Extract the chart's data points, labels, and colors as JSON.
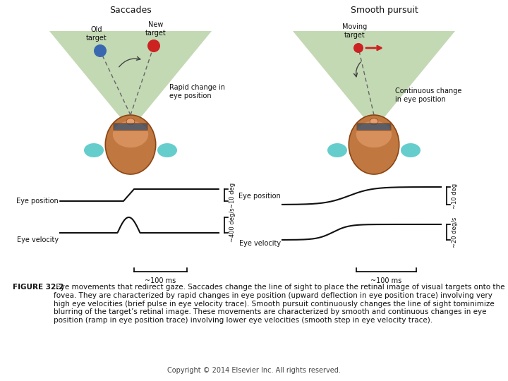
{
  "caption_bold": "FIGURE 32.2",
  "caption_rest": " Eye movements that redirect gaze. Saccades change the line of sight to place the retinal image of visual targets onto the fovea. They are characterized by rapid changes in eye position (upward deflection in eye position trace) involving very high eye velocities (brief pulse in eye velocity trace). Smooth pursuit continuously changes the line of sight tominimize blurring of the target’s retinal image. These movements are characterized by smooth and continuous changes in eye position (ramp in eye position trace) involving lower eye velocities (smooth step in eye velocity trace).",
  "copyright": "Copyright © 2014 Elsevier Inc. All rights reserved.",
  "left_title": "Saccades",
  "right_title": "Smooth pursuit",
  "left_scale_pos": "~10 deg",
  "left_scale_vel": "~400 deg/s",
  "right_scale_pos": "~10 deg",
  "right_scale_vel": "~20 deg/s",
  "time_label": "~100 ms",
  "bg_color": "#ffffff",
  "green_color": "#7aab5a",
  "blue_dot": "#3a68b0",
  "red_dot": "#cc2222",
  "skin_color": "#c07840",
  "skin_dark": "#8b4513",
  "cyan_color": "#55c8c8",
  "trace_color": "#111111",
  "text_color": "#111111",
  "nose_color": "#e8a070",
  "goggle_color": "#2a4a6a"
}
